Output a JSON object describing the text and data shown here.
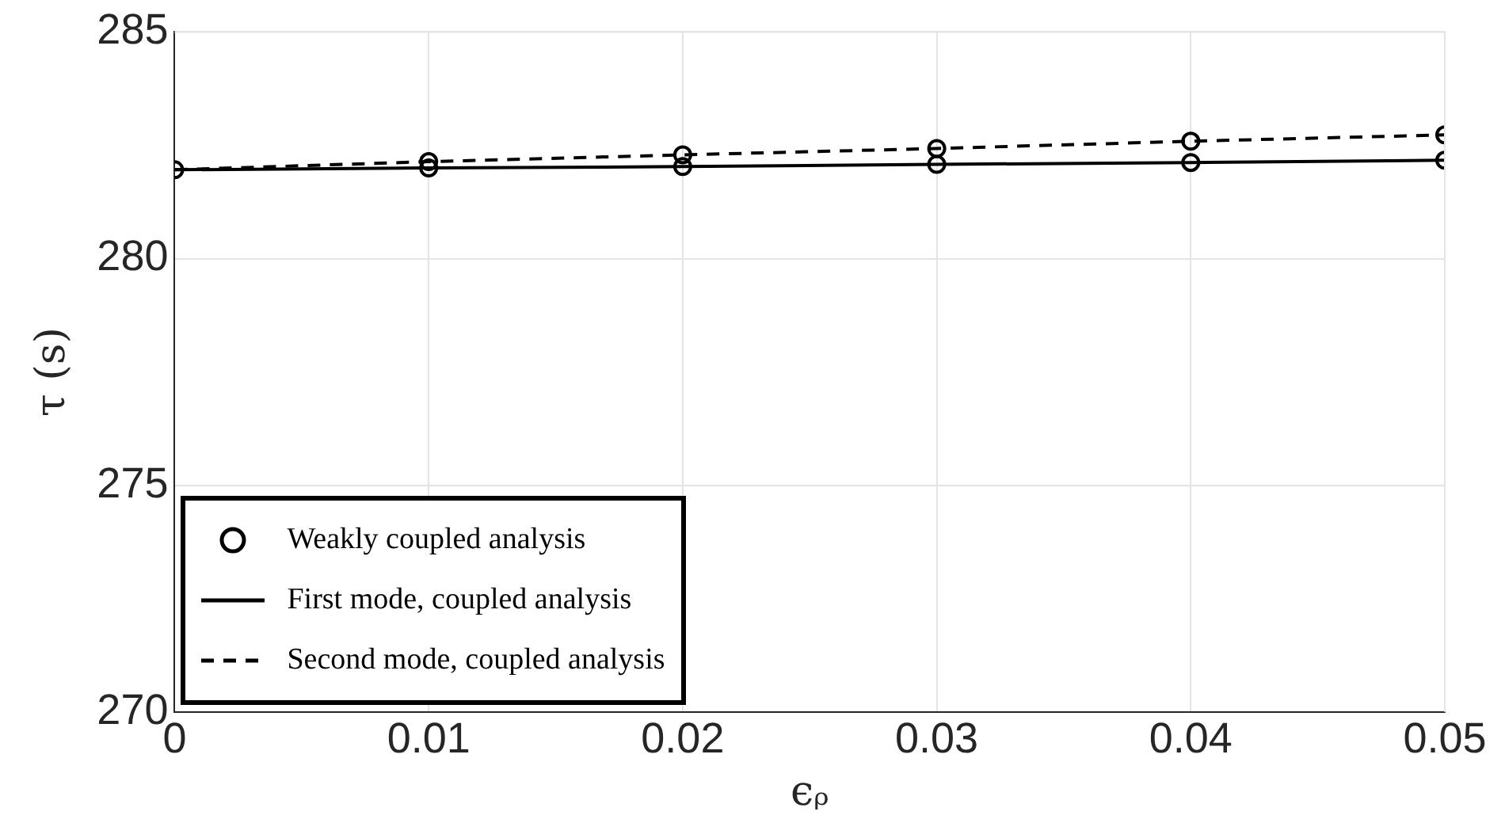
{
  "chart_data": {
    "type": "line",
    "xlabel": "ϵᵨ",
    "ylabel": "τ (s)",
    "xlim": [
      0,
      0.05
    ],
    "xticks": [
      0,
      0.01,
      0.02,
      0.03,
      0.04,
      0.05
    ],
    "ylim": [
      270,
      285
    ],
    "yticks": [
      270,
      275,
      280,
      285
    ],
    "grid": true,
    "legend": "bottom left",
    "series": [
      {
        "name": "Weakly coupled analysis",
        "type": "scatter",
        "marker": "circle",
        "color": "#000000",
        "x": [
          0,
          0.01,
          0.02,
          0.03,
          0.04,
          0.05,
          0.01,
          0.02,
          0.03,
          0.04,
          0.05
        ],
        "values": [
          281.96,
          282.0,
          282.03,
          282.08,
          282.12,
          282.17,
          282.14,
          282.29,
          282.43,
          282.59,
          282.73
        ]
      },
      {
        "name": "First mode, coupled analysis",
        "line_style": "solid",
        "color": "#000000",
        "x": [
          0,
          0.01,
          0.02,
          0.03,
          0.04,
          0.05
        ],
        "values": [
          281.96,
          282.0,
          282.03,
          282.08,
          282.12,
          282.17
        ]
      },
      {
        "name": "Second mode, coupled analysis",
        "line_style": "dashed",
        "color": "#000000",
        "x": [
          0,
          0.01,
          0.02,
          0.03,
          0.04,
          0.05
        ],
        "values": [
          281.96,
          282.14,
          282.29,
          282.43,
          282.59,
          282.73
        ]
      }
    ]
  }
}
